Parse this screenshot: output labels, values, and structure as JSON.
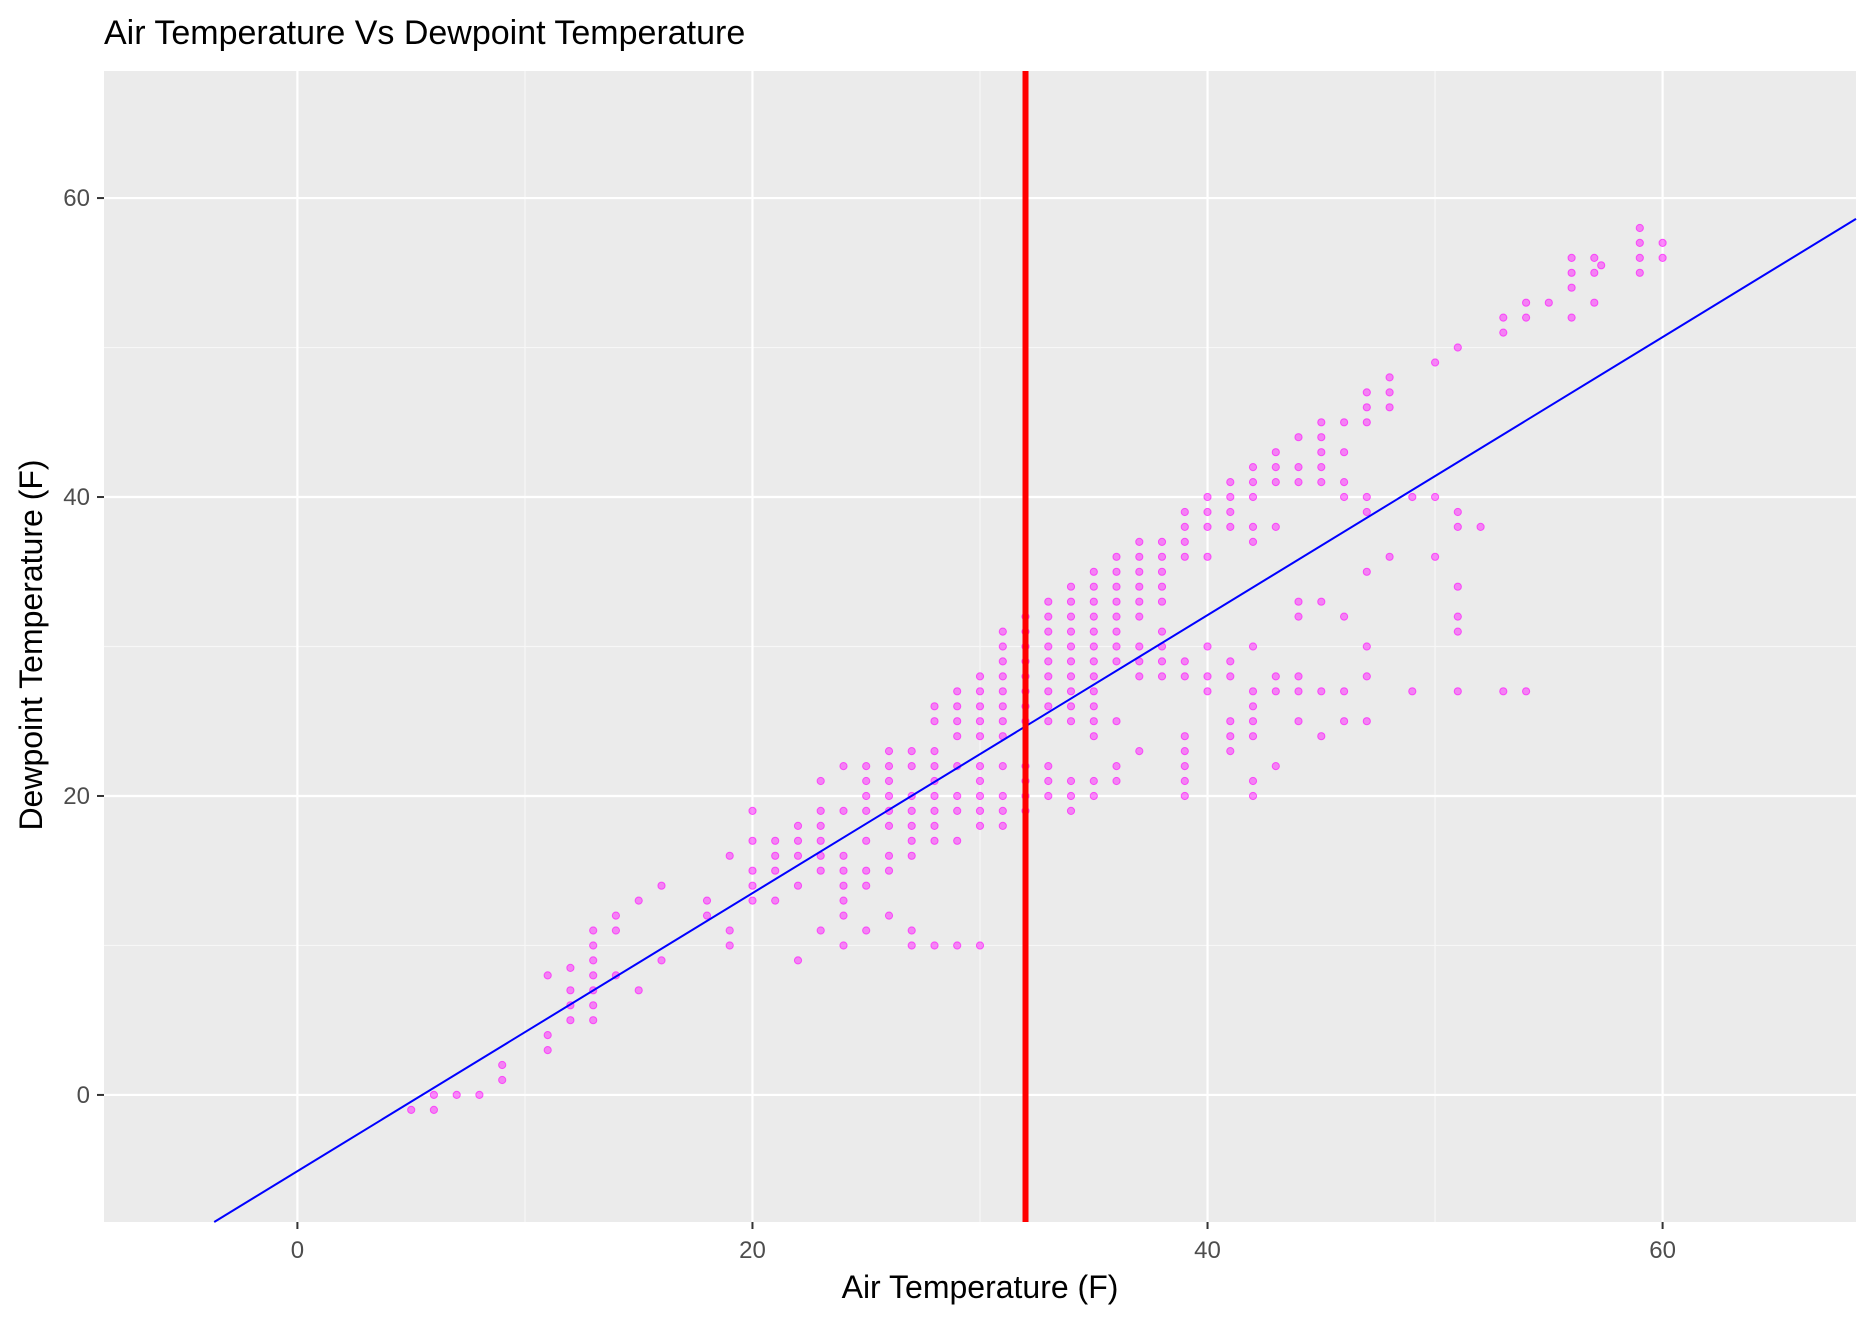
{
  "chart_data": {
    "type": "scatter",
    "title": "Air Temperature Vs Dewpoint Temperature",
    "xlabel": "Air Temperature (F)",
    "ylabel": "Dewpoint Temperature (F)",
    "xlim": [
      -8.5,
      68.5
    ],
    "ylim": [
      -8.5,
      68.5
    ],
    "x_ticks": [
      0,
      20,
      40,
      60
    ],
    "y_ticks": [
      0,
      20,
      40,
      60
    ],
    "grid": true,
    "colors": {
      "panel_background": "#ebebeb",
      "grid_major": "#ffffff",
      "grid_minor": "#f7f7f7",
      "points": "#ff00ff",
      "regression_line": "#0000ff",
      "reference_line": "#ff0000",
      "tick_label": "#4d4d4d"
    },
    "reference_line": {
      "orientation": "vertical",
      "x": 32
    },
    "regression_line": {
      "slope": 0.93,
      "intercept": -5.1
    },
    "series": [
      {
        "points": [
          [
            5,
            -1
          ],
          [
            6,
            -1
          ],
          [
            6,
            0
          ],
          [
            7,
            0
          ],
          [
            8,
            0
          ],
          [
            9,
            1
          ],
          [
            9,
            2
          ],
          [
            11,
            3
          ],
          [
            11,
            4
          ],
          [
            11,
            8
          ],
          [
            12,
            5
          ],
          [
            12,
            6
          ],
          [
            12,
            7
          ],
          [
            12,
            8.5
          ],
          [
            13,
            5
          ],
          [
            13,
            6
          ],
          [
            13,
            7
          ],
          [
            13,
            8
          ],
          [
            13,
            9
          ],
          [
            13,
            10
          ],
          [
            13,
            11
          ],
          [
            14,
            8
          ],
          [
            14,
            11
          ],
          [
            14,
            12
          ],
          [
            15,
            7
          ],
          [
            15,
            13
          ],
          [
            16,
            9
          ],
          [
            16,
            14
          ],
          [
            18,
            12
          ],
          [
            18,
            13
          ],
          [
            19,
            10
          ],
          [
            19,
            11
          ],
          [
            19,
            16
          ],
          [
            20,
            13
          ],
          [
            20,
            14
          ],
          [
            20,
            15
          ],
          [
            20,
            17
          ],
          [
            20,
            19
          ],
          [
            21,
            13
          ],
          [
            21,
            15
          ],
          [
            21,
            16
          ],
          [
            21,
            17
          ],
          [
            22,
            9
          ],
          [
            22,
            14
          ],
          [
            22,
            16
          ],
          [
            22,
            17
          ],
          [
            22,
            18
          ],
          [
            23,
            11
          ],
          [
            23,
            15
          ],
          [
            23,
            16
          ],
          [
            23,
            17
          ],
          [
            23,
            18
          ],
          [
            23,
            19
          ],
          [
            23,
            21
          ],
          [
            24,
            10
          ],
          [
            24,
            12
          ],
          [
            24,
            13
          ],
          [
            24,
            14
          ],
          [
            24,
            15
          ],
          [
            24,
            16
          ],
          [
            24,
            19
          ],
          [
            24,
            22
          ],
          [
            25,
            11
          ],
          [
            25,
            14
          ],
          [
            25,
            15
          ],
          [
            25,
            17
          ],
          [
            25,
            19
          ],
          [
            25,
            20
          ],
          [
            25,
            21
          ],
          [
            25,
            22
          ],
          [
            26,
            12
          ],
          [
            26,
            15
          ],
          [
            26,
            16
          ],
          [
            26,
            18
          ],
          [
            26,
            19
          ],
          [
            26,
            20
          ],
          [
            26,
            21
          ],
          [
            26,
            22
          ],
          [
            26,
            23
          ],
          [
            27,
            10
          ],
          [
            27,
            11
          ],
          [
            27,
            16
          ],
          [
            27,
            17
          ],
          [
            27,
            18
          ],
          [
            27,
            19
          ],
          [
            27,
            20
          ],
          [
            27,
            22
          ],
          [
            27,
            23
          ],
          [
            28,
            10
          ],
          [
            28,
            17
          ],
          [
            28,
            18
          ],
          [
            28,
            19
          ],
          [
            28,
            20
          ],
          [
            28,
            21
          ],
          [
            28,
            22
          ],
          [
            28,
            23
          ],
          [
            28,
            25
          ],
          [
            28,
            26
          ],
          [
            29,
            10
          ],
          [
            29,
            17
          ],
          [
            29,
            19
          ],
          [
            29,
            20
          ],
          [
            29,
            22
          ],
          [
            29,
            24
          ],
          [
            29,
            25
          ],
          [
            29,
            26
          ],
          [
            29,
            27
          ],
          [
            30,
            10
          ],
          [
            30,
            18
          ],
          [
            30,
            19
          ],
          [
            30,
            20
          ],
          [
            30,
            21
          ],
          [
            30,
            22
          ],
          [
            30,
            24
          ],
          [
            30,
            25
          ],
          [
            30,
            26
          ],
          [
            30,
            27
          ],
          [
            30,
            28
          ],
          [
            31,
            18
          ],
          [
            31,
            19
          ],
          [
            31,
            20
          ],
          [
            31,
            22
          ],
          [
            31,
            24
          ],
          [
            31,
            25
          ],
          [
            31,
            26
          ],
          [
            31,
            27
          ],
          [
            31,
            28
          ],
          [
            31,
            29
          ],
          [
            31,
            30
          ],
          [
            31,
            31
          ],
          [
            32,
            19
          ],
          [
            32,
            20
          ],
          [
            32,
            21
          ],
          [
            32,
            22
          ],
          [
            32,
            25
          ],
          [
            32,
            26
          ],
          [
            32,
            27
          ],
          [
            32,
            28
          ],
          [
            32,
            29
          ],
          [
            32,
            30
          ],
          [
            32,
            31
          ],
          [
            32,
            32
          ],
          [
            33,
            20
          ],
          [
            33,
            21
          ],
          [
            33,
            22
          ],
          [
            33,
            25
          ],
          [
            33,
            26
          ],
          [
            33,
            27
          ],
          [
            33,
            28
          ],
          [
            33,
            29
          ],
          [
            33,
            30
          ],
          [
            33,
            31
          ],
          [
            33,
            32
          ],
          [
            33,
            33
          ],
          [
            34,
            19
          ],
          [
            34,
            20
          ],
          [
            34,
            21
          ],
          [
            34,
            25
          ],
          [
            34,
            26
          ],
          [
            34,
            27
          ],
          [
            34,
            28
          ],
          [
            34,
            29
          ],
          [
            34,
            30
          ],
          [
            34,
            31
          ],
          [
            34,
            32
          ],
          [
            34,
            33
          ],
          [
            34,
            34
          ],
          [
            35,
            20
          ],
          [
            35,
            21
          ],
          [
            35,
            24
          ],
          [
            35,
            25
          ],
          [
            35,
            26
          ],
          [
            35,
            27
          ],
          [
            35,
            28
          ],
          [
            35,
            29
          ],
          [
            35,
            30
          ],
          [
            35,
            31
          ],
          [
            35,
            32
          ],
          [
            35,
            33
          ],
          [
            35,
            34
          ],
          [
            35,
            35
          ],
          [
            36,
            21
          ],
          [
            36,
            22
          ],
          [
            36,
            25
          ],
          [
            36,
            29
          ],
          [
            36,
            30
          ],
          [
            36,
            31
          ],
          [
            36,
            32
          ],
          [
            36,
            33
          ],
          [
            36,
            34
          ],
          [
            36,
            35
          ],
          [
            36,
            36
          ],
          [
            37,
            23
          ],
          [
            37,
            28
          ],
          [
            37,
            29
          ],
          [
            37,
            30
          ],
          [
            37,
            32
          ],
          [
            37,
            33
          ],
          [
            37,
            34
          ],
          [
            37,
            35
          ],
          [
            37,
            36
          ],
          [
            37,
            37
          ],
          [
            38,
            28
          ],
          [
            38,
            29
          ],
          [
            38,
            30
          ],
          [
            38,
            31
          ],
          [
            38,
            33
          ],
          [
            38,
            34
          ],
          [
            38,
            35
          ],
          [
            38,
            36
          ],
          [
            38,
            37
          ],
          [
            39,
            20
          ],
          [
            39,
            21
          ],
          [
            39,
            22
          ],
          [
            39,
            23
          ],
          [
            39,
            24
          ],
          [
            39,
            28
          ],
          [
            39,
            29
          ],
          [
            39,
            36
          ],
          [
            39,
            37
          ],
          [
            39,
            38
          ],
          [
            39,
            39
          ],
          [
            40,
            27
          ],
          [
            40,
            28
          ],
          [
            40,
            30
          ],
          [
            40,
            36
          ],
          [
            40,
            38
          ],
          [
            40,
            39
          ],
          [
            40,
            40
          ],
          [
            41,
            23
          ],
          [
            41,
            24
          ],
          [
            41,
            25
          ],
          [
            41,
            28
          ],
          [
            41,
            29
          ],
          [
            41,
            38
          ],
          [
            41,
            39
          ],
          [
            41,
            40
          ],
          [
            41,
            41
          ],
          [
            42,
            20
          ],
          [
            42,
            21
          ],
          [
            42,
            24
          ],
          [
            42,
            25
          ],
          [
            42,
            26
          ],
          [
            42,
            27
          ],
          [
            42,
            30
          ],
          [
            42,
            37
          ],
          [
            42,
            38
          ],
          [
            42,
            40
          ],
          [
            42,
            41
          ],
          [
            42,
            42
          ],
          [
            43,
            22
          ],
          [
            43,
            27
          ],
          [
            43,
            28
          ],
          [
            43,
            38
          ],
          [
            43,
            41
          ],
          [
            43,
            42
          ],
          [
            43,
            43
          ],
          [
            44,
            25
          ],
          [
            44,
            27
          ],
          [
            44,
            28
          ],
          [
            44,
            32
          ],
          [
            44,
            33
          ],
          [
            44,
            41
          ],
          [
            44,
            42
          ],
          [
            44,
            44
          ],
          [
            45,
            24
          ],
          [
            45,
            27
          ],
          [
            45,
            33
          ],
          [
            45,
            41
          ],
          [
            45,
            42
          ],
          [
            45,
            43
          ],
          [
            45,
            44
          ],
          [
            45,
            45
          ],
          [
            46,
            25
          ],
          [
            46,
            27
          ],
          [
            46,
            32
          ],
          [
            46,
            40
          ],
          [
            46,
            41
          ],
          [
            46,
            43
          ],
          [
            46,
            45
          ],
          [
            47,
            25
          ],
          [
            47,
            28
          ],
          [
            47,
            30
          ],
          [
            47,
            35
          ],
          [
            47,
            39
          ],
          [
            47,
            40
          ],
          [
            47,
            45
          ],
          [
            47,
            46
          ],
          [
            47,
            47
          ],
          [
            48,
            36
          ],
          [
            48,
            46
          ],
          [
            48,
            47
          ],
          [
            48,
            48
          ],
          [
            49,
            27
          ],
          [
            49,
            40
          ],
          [
            50,
            36
          ],
          [
            50,
            40
          ],
          [
            50,
            49
          ],
          [
            51,
            27
          ],
          [
            51,
            31
          ],
          [
            51,
            32
          ],
          [
            51,
            34
          ],
          [
            51,
            38
          ],
          [
            51,
            39
          ],
          [
            51,
            50
          ],
          [
            52,
            38
          ],
          [
            53,
            27
          ],
          [
            53,
            51
          ],
          [
            53,
            52
          ],
          [
            54,
            27
          ],
          [
            54,
            52
          ],
          [
            54,
            53
          ],
          [
            55,
            53
          ],
          [
            56,
            52
          ],
          [
            56,
            54
          ],
          [
            56,
            55
          ],
          [
            56,
            56
          ],
          [
            57,
            53
          ],
          [
            57,
            55
          ],
          [
            57,
            56
          ],
          [
            57.3,
            55.5
          ],
          [
            59,
            55
          ],
          [
            59,
            56
          ],
          [
            59,
            57
          ],
          [
            59,
            58
          ],
          [
            60,
            56
          ],
          [
            60,
            57
          ]
        ]
      }
    ]
  }
}
